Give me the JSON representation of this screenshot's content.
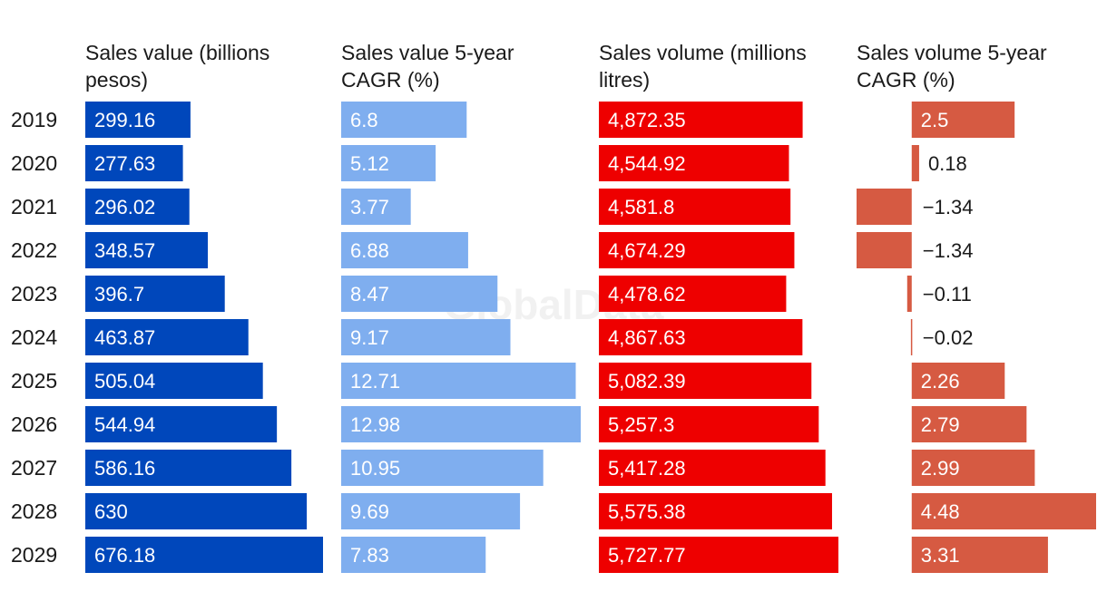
{
  "watermark": "GlobalData",
  "chart_data": {
    "type": "bar",
    "orientation": "horizontal",
    "categories": [
      "2019",
      "2020",
      "2021",
      "2022",
      "2023",
      "2024",
      "2025",
      "2026",
      "2027",
      "2028",
      "2029"
    ],
    "series": [
      {
        "name": "Sales value (billions pesos)",
        "header_lines": [
          "Sales value (billions",
          "pesos)"
        ],
        "color": "#0047BB",
        "values": [
          299.16,
          277.63,
          296.02,
          348.57,
          396.7,
          463.87,
          505.04,
          544.94,
          586.16,
          630,
          676.18
        ],
        "labels": [
          "299.16",
          "277.63",
          "296.02",
          "348.57",
          "396.7",
          "463.87",
          "505.04",
          "544.94",
          "586.16",
          "630",
          "676.18"
        ]
      },
      {
        "name": "Sales value 5-year CAGR (%)",
        "header_lines": [
          "Sales value 5-year",
          "CAGR (%)"
        ],
        "color": "#7FAEEF",
        "values": [
          6.8,
          5.12,
          3.77,
          6.88,
          8.47,
          9.17,
          12.71,
          12.98,
          10.95,
          9.69,
          7.83
        ],
        "labels": [
          "6.8",
          "5.12",
          "3.77",
          "6.88",
          "8.47",
          "9.17",
          "12.71",
          "12.98",
          "10.95",
          "9.69",
          "7.83"
        ]
      },
      {
        "name": "Sales volume (millions litres)",
        "header_lines": [
          "Sales volume (millions",
          "litres)"
        ],
        "color": "#EE0000",
        "values": [
          4872.35,
          4544.92,
          4581.8,
          4674.29,
          4478.62,
          4867.63,
          5082.39,
          5257.3,
          5417.28,
          5575.38,
          5727.77
        ],
        "labels": [
          "4,872.35",
          "4,544.92",
          "4,581.8",
          "4,674.29",
          "4,478.62",
          "4,867.63",
          "5,082.39",
          "5,257.3",
          "5,417.28",
          "5,575.38",
          "5,727.77"
        ]
      },
      {
        "name": "Sales volume 5-year CAGR (%)",
        "header_lines": [
          "Sales volume 5-year",
          "CAGR (%)"
        ],
        "color": "#D65A42",
        "values": [
          2.5,
          0.18,
          -1.34,
          -1.34,
          -0.11,
          -0.02,
          2.26,
          2.79,
          2.99,
          4.48,
          3.31
        ],
        "labels": [
          "2.5",
          "0.18",
          "−1.34",
          "−1.34",
          "−0.11",
          "−0.02",
          "2.26",
          "2.79",
          "2.99",
          "4.48",
          "3.31"
        ]
      }
    ],
    "xlabel": "",
    "ylabel": "",
    "grid": false,
    "legend": "column headers"
  }
}
